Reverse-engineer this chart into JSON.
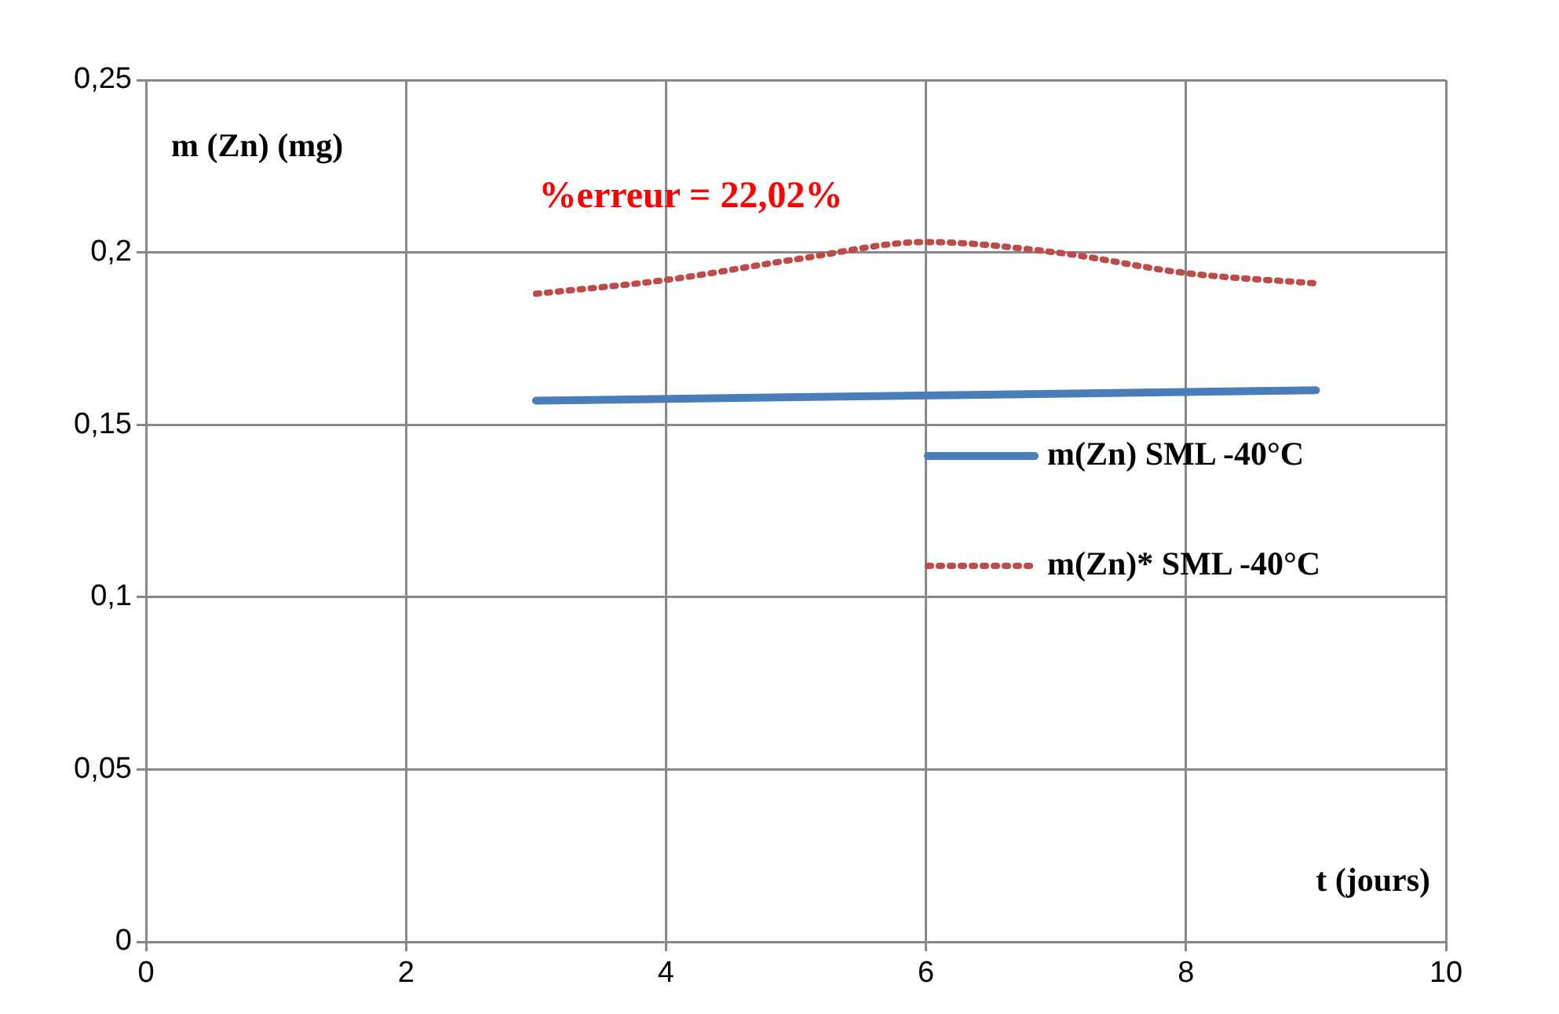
{
  "chart_data": {
    "type": "line",
    "xlabel": "t (jours)",
    "ylabel": "m (Zn) (mg)",
    "annotations": [
      "%erreur = 22,02%"
    ],
    "series": [
      {
        "name": "m(Zn) SML -40°C",
        "color": "#4a7ebb",
        "line_style": "solid",
        "x": [
          3,
          9
        ],
        "values": [
          0.157,
          0.16
        ]
      },
      {
        "name": "m(Zn)* SML -40°C",
        "color": "#be4b48",
        "line_style": "dotted",
        "x": [
          3,
          4,
          5,
          6,
          7,
          8,
          9
        ],
        "values": [
          0.188,
          0.192,
          0.198,
          0.203,
          0.2,
          0.194,
          0.191
        ]
      }
    ],
    "xlim": [
      0,
      10
    ],
    "xticks": [
      0,
      2,
      4,
      6,
      8,
      10
    ],
    "ylim": [
      0,
      0.25
    ],
    "yticks": [
      {
        "value": 0,
        "label": "0"
      },
      {
        "value": 0.05,
        "label": "0,05"
      },
      {
        "value": 0.1,
        "label": "0,1"
      },
      {
        "value": 0.15,
        "label": "0,15"
      },
      {
        "value": 0.2,
        "label": "0,2"
      },
      {
        "value": 0.25,
        "label": "0,25"
      }
    ],
    "grid": true,
    "legend": "right",
    "marker": "none"
  }
}
